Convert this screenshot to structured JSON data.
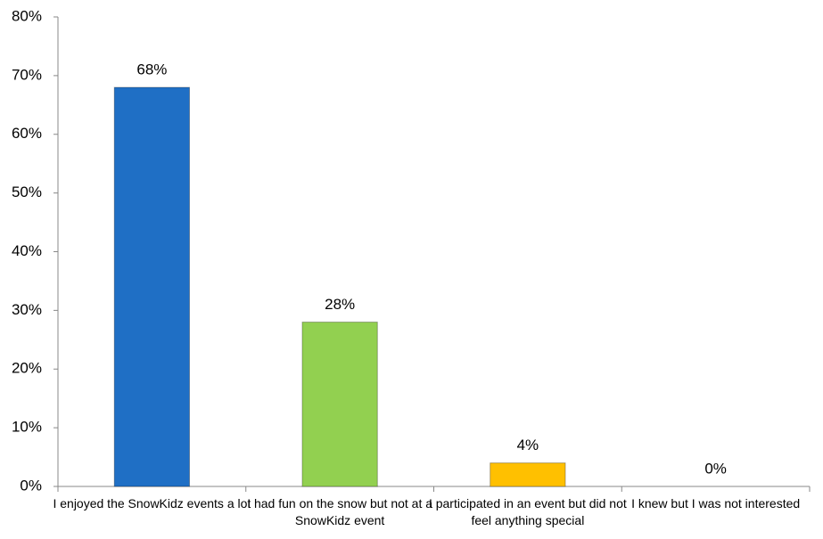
{
  "chart_data": {
    "type": "bar",
    "categories": [
      "I enjoyed the SnowKidz events a lot",
      "I had fun on the snow but not at a SnowKidz event",
      "I participated in an event but did not feel anything special",
      "I knew but I was not interested"
    ],
    "values": [
      68,
      28,
      4,
      0
    ],
    "value_labels": [
      "68%",
      "28%",
      "4%",
      "0%"
    ],
    "colors": [
      "#1f6fc5",
      "#92d050",
      "#ffc000",
      "#a6a6a6"
    ],
    "ylim": [
      0,
      80
    ],
    "yticks": [
      {
        "value": 0,
        "label": "0%"
      },
      {
        "value": 10,
        "label": "10%"
      },
      {
        "value": 20,
        "label": "20%"
      },
      {
        "value": 30,
        "label": "30%"
      },
      {
        "value": 40,
        "label": "40%"
      },
      {
        "value": 50,
        "label": "50%"
      },
      {
        "value": 60,
        "label": "60%"
      },
      {
        "value": 70,
        "label": "70%"
      },
      {
        "value": 80,
        "label": "80%"
      }
    ],
    "grid": false
  }
}
